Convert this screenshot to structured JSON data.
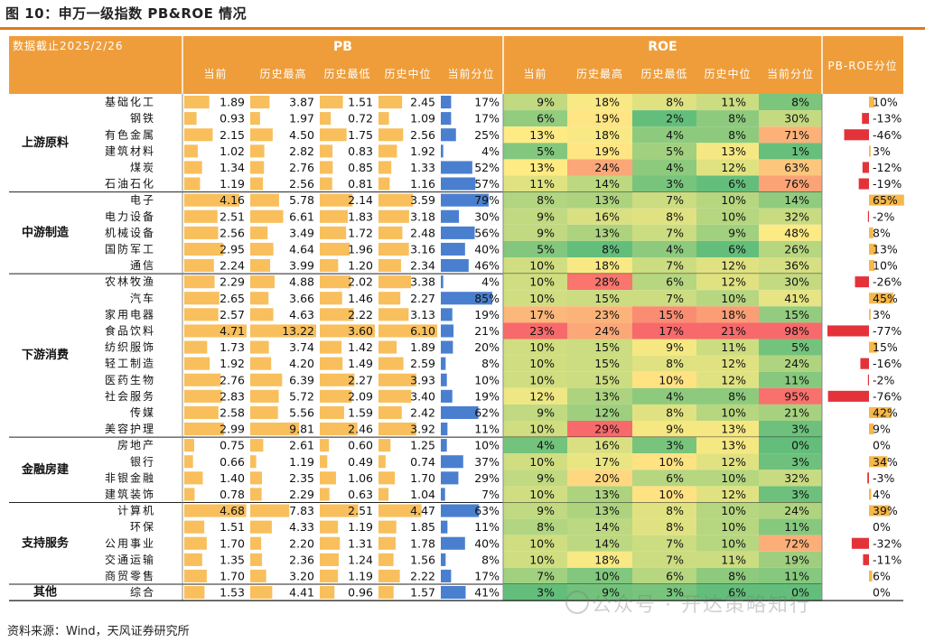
{
  "title": "图 10：申万一级指数 PB&ROE 情况",
  "source": "资料来源：Wind，天风证券研究所",
  "watermark": "公众号 · 开达策略知行",
  "colors": {
    "accent": "#f0a848",
    "header": "#ef9d3a",
    "rule": "#e07818",
    "bar_pb": "#f7b84a",
    "bar_pct": "#4a7fd0",
    "bar_neg": "#e4323a"
  },
  "chart_data": {
    "type": "table",
    "date_label": "数据截止2025/2/26",
    "groups_header": {
      "pb": "PB",
      "roe": "ROE",
      "pbroe": "PB-ROE分位"
    },
    "columns": [
      "当前",
      "历史最高",
      "历史最低",
      "历史中位",
      "当前分位"
    ],
    "groups": [
      {
        "name": "上游原料",
        "rows": [
          {
            "industry": "基础化工",
            "pb": [
              "1.89",
              "3.87",
              "1.51",
              "2.45",
              "17%"
            ],
            "roe": [
              "9%",
              "18%",
              "8%",
              "11%",
              "8%"
            ],
            "pbroe": "10%"
          },
          {
            "industry": "钢铁",
            "pb": [
              "0.93",
              "1.97",
              "0.72",
              "1.09",
              "17%"
            ],
            "roe": [
              "6%",
              "19%",
              "2%",
              "8%",
              "30%"
            ],
            "pbroe": "-13%"
          },
          {
            "industry": "有色金属",
            "pb": [
              "2.15",
              "4.50",
              "1.75",
              "2.56",
              "25%"
            ],
            "roe": [
              "13%",
              "18%",
              "4%",
              "8%",
              "71%"
            ],
            "pbroe": "-46%"
          },
          {
            "industry": "建筑材料",
            "pb": [
              "1.02",
              "2.82",
              "0.83",
              "1.92",
              "4%"
            ],
            "roe": [
              "5%",
              "19%",
              "5%",
              "13%",
              "1%"
            ],
            "pbroe": "3%"
          },
          {
            "industry": "煤炭",
            "pb": [
              "1.34",
              "2.76",
              "0.85",
              "1.33",
              "52%"
            ],
            "roe": [
              "13%",
              "24%",
              "4%",
              "12%",
              "63%"
            ],
            "pbroe": "-12%"
          },
          {
            "industry": "石油石化",
            "pb": [
              "1.19",
              "2.56",
              "0.81",
              "1.16",
              "57%"
            ],
            "roe": [
              "11%",
              "14%",
              "3%",
              "6%",
              "76%"
            ],
            "pbroe": "-19%"
          }
        ]
      },
      {
        "name": "中游制造",
        "rows": [
          {
            "industry": "电子",
            "pb": [
              "4.16",
              "5.78",
              "2.14",
              "3.59",
              "79%"
            ],
            "roe": [
              "8%",
              "13%",
              "7%",
              "10%",
              "14%"
            ],
            "pbroe": "65%"
          },
          {
            "industry": "电力设备",
            "pb": [
              "2.51",
              "6.61",
              "1.83",
              "3.18",
              "30%"
            ],
            "roe": [
              "9%",
              "16%",
              "8%",
              "10%",
              "32%"
            ],
            "pbroe": "-2%"
          },
          {
            "industry": "机械设备",
            "pb": [
              "2.56",
              "3.49",
              "1.72",
              "2.48",
              "56%"
            ],
            "roe": [
              "9%",
              "13%",
              "7%",
              "9%",
              "48%"
            ],
            "pbroe": "8%"
          },
          {
            "industry": "国防军工",
            "pb": [
              "2.95",
              "4.64",
              "1.96",
              "3.16",
              "40%"
            ],
            "roe": [
              "5%",
              "8%",
              "4%",
              "6%",
              "26%"
            ],
            "pbroe": "13%"
          },
          {
            "industry": "通信",
            "pb": [
              "2.24",
              "3.99",
              "1.20",
              "2.34",
              "46%"
            ],
            "roe": [
              "10%",
              "18%",
              "7%",
              "12%",
              "36%"
            ],
            "pbroe": "10%"
          }
        ]
      },
      {
        "name": "下游消费",
        "rows": [
          {
            "industry": "农林牧渔",
            "pb": [
              "2.29",
              "4.88",
              "2.02",
              "3.38",
              "4%"
            ],
            "roe": [
              "10%",
              "28%",
              "6%",
              "12%",
              "30%"
            ],
            "pbroe": "-26%"
          },
          {
            "industry": "汽车",
            "pb": [
              "2.65",
              "3.66",
              "1.46",
              "2.27",
              "85%"
            ],
            "roe": [
              "10%",
              "15%",
              "7%",
              "10%",
              "41%"
            ],
            "pbroe": "45%"
          },
          {
            "industry": "家用电器",
            "pb": [
              "2.57",
              "4.63",
              "2.22",
              "3.13",
              "19%"
            ],
            "roe": [
              "17%",
              "23%",
              "15%",
              "18%",
              "15%"
            ],
            "pbroe": "3%"
          },
          {
            "industry": "食品饮料",
            "pb": [
              "4.71",
              "13.22",
              "3.60",
              "6.10",
              "21%"
            ],
            "roe": [
              "23%",
              "24%",
              "17%",
              "21%",
              "98%"
            ],
            "pbroe": "-77%"
          },
          {
            "industry": "纺织服饰",
            "pb": [
              "1.73",
              "3.74",
              "1.42",
              "1.89",
              "20%"
            ],
            "roe": [
              "10%",
              "15%",
              "9%",
              "11%",
              "5%"
            ],
            "pbroe": "15%"
          },
          {
            "industry": "轻工制造",
            "pb": [
              "1.92",
              "4.20",
              "1.49",
              "2.59",
              "8%"
            ],
            "roe": [
              "10%",
              "15%",
              "8%",
              "12%",
              "24%"
            ],
            "pbroe": "-16%"
          },
          {
            "industry": "医药生物",
            "pb": [
              "2.76",
              "6.39",
              "2.27",
              "3.93",
              "10%"
            ],
            "roe": [
              "10%",
              "15%",
              "10%",
              "12%",
              "11%"
            ],
            "pbroe": "-2%"
          },
          {
            "industry": "社会服务",
            "pb": [
              "2.83",
              "5.72",
              "2.09",
              "3.40",
              "19%"
            ],
            "roe": [
              "12%",
              "13%",
              "4%",
              "8%",
              "95%"
            ],
            "pbroe": "-76%"
          },
          {
            "industry": "传媒",
            "pb": [
              "2.58",
              "5.56",
              "1.59",
              "2.42",
              "62%"
            ],
            "roe": [
              "9%",
              "12%",
              "8%",
              "10%",
              "21%"
            ],
            "pbroe": "42%"
          },
          {
            "industry": "美容护理",
            "pb": [
              "2.99",
              "9.81",
              "2.46",
              "3.92",
              "11%"
            ],
            "roe": [
              "10%",
              "29%",
              "9%",
              "13%",
              "3%"
            ],
            "pbroe": "9%"
          }
        ]
      },
      {
        "name": "金融房建",
        "rows": [
          {
            "industry": "房地产",
            "pb": [
              "0.75",
              "2.61",
              "0.60",
              "1.25",
              "10%"
            ],
            "roe": [
              "4%",
              "16%",
              "3%",
              "13%",
              "0%"
            ],
            "pbroe": "0%"
          },
          {
            "industry": "银行",
            "pb": [
              "0.66",
              "1.19",
              "0.49",
              "0.74",
              "37%"
            ],
            "roe": [
              "10%",
              "17%",
              "10%",
              "12%",
              "3%"
            ],
            "pbroe": "34%"
          },
          {
            "industry": "非银金融",
            "pb": [
              "1.40",
              "2.35",
              "1.06",
              "1.70",
              "29%"
            ],
            "roe": [
              "9%",
              "20%",
              "6%",
              "10%",
              "32%"
            ],
            "pbroe": "-3%"
          },
          {
            "industry": "建筑装饰",
            "pb": [
              "0.78",
              "2.29",
              "0.63",
              "1.04",
              "7%"
            ],
            "roe": [
              "10%",
              "13%",
              "10%",
              "12%",
              "3%"
            ],
            "pbroe": "4%"
          }
        ]
      },
      {
        "name": "支持服务",
        "rows": [
          {
            "industry": "计算机",
            "pb": [
              "4.68",
              "7.83",
              "2.51",
              "4.47",
              "63%"
            ],
            "roe": [
              "9%",
              "13%",
              "8%",
              "10%",
              "24%"
            ],
            "pbroe": "39%"
          },
          {
            "industry": "环保",
            "pb": [
              "1.51",
              "4.33",
              "1.19",
              "1.85",
              "11%"
            ],
            "roe": [
              "8%",
              "14%",
              "8%",
              "10%",
              "11%"
            ],
            "pbroe": "0%"
          },
          {
            "industry": "公用事业",
            "pb": [
              "1.70",
              "2.20",
              "1.31",
              "1.78",
              "40%"
            ],
            "roe": [
              "10%",
              "14%",
              "7%",
              "10%",
              "72%"
            ],
            "pbroe": "-32%"
          },
          {
            "industry": "交通运输",
            "pb": [
              "1.35",
              "2.36",
              "1.24",
              "1.56",
              "8%"
            ],
            "roe": [
              "10%",
              "18%",
              "7%",
              "11%",
              "19%"
            ],
            "pbroe": "-11%"
          },
          {
            "industry": "商贸零售",
            "pb": [
              "1.70",
              "3.20",
              "1.19",
              "2.22",
              "17%"
            ],
            "roe": [
              "7%",
              "10%",
              "6%",
              "8%",
              "11%"
            ],
            "pbroe": "6%"
          }
        ]
      },
      {
        "name": "其他",
        "rows": [
          {
            "industry": "综合",
            "pb": [
              "1.53",
              "4.41",
              "0.96",
              "1.57",
              "41%"
            ],
            "roe": [
              "3%",
              "9%",
              "3%",
              "6%",
              "0%"
            ],
            "pbroe": "0%"
          }
        ]
      }
    ]
  }
}
